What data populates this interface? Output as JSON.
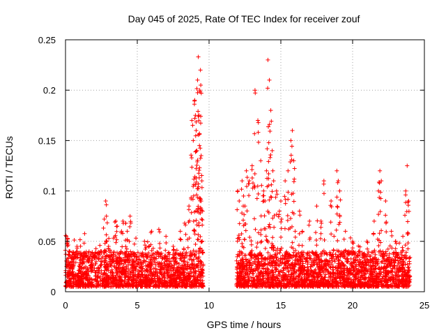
{
  "chart_data": {
    "type": "scatter",
    "title": "Day 045 of 2025, Rate Of TEC Index for receiver zouf",
    "xlabel": "GPS time / hours",
    "ylabel": "ROTI / TECUs",
    "xlim": [
      0,
      25
    ],
    "ylim": [
      0,
      0.25
    ],
    "xticks": [
      0,
      5,
      10,
      15,
      20,
      25
    ],
    "yticks": [
      0,
      0.05,
      0.1,
      0.15,
      0.2,
      0.25
    ],
    "xtick_labels": [
      "0",
      "5",
      "10",
      "15",
      "20",
      "25"
    ],
    "ytick_labels": [
      "0",
      "0.05",
      "0.1",
      "0.15",
      "0.2",
      "0.25"
    ],
    "grid": true,
    "marker": "+",
    "color": "#ff0000",
    "series": [
      {
        "name": "ROTI",
        "x": [
          0.05,
          0.1,
          0.15,
          0.3,
          0.5,
          0.6,
          0.8,
          1.0,
          1.2,
          1.5,
          2.0,
          2.5,
          2.7,
          2.8,
          2.85,
          3.0,
          3.5,
          3.6,
          3.9,
          4.0,
          4.2,
          4.3,
          4.5,
          5.5,
          6.0,
          6.5,
          7.0,
          7.5,
          8.0,
          8.3,
          8.6,
          8.8,
          8.9,
          9.0,
          9.05,
          9.1,
          9.15,
          9.2,
          9.25,
          9.3,
          9.35,
          9.4,
          9.45,
          9.5,
          9.55,
          12.0,
          12.1,
          12.3,
          12.4,
          12.5,
          12.6,
          12.8,
          13.0,
          13.2,
          13.4,
          13.6,
          13.8,
          13.9,
          14.0,
          14.1,
          14.2,
          14.3,
          14.4,
          14.5,
          14.7,
          14.9,
          15.0,
          15.3,
          15.5,
          15.7,
          15.8,
          15.9,
          16.0,
          16.3,
          16.5,
          17.0,
          17.5,
          17.8,
          18.0,
          18.5,
          18.9,
          19.0,
          19.1,
          19.5,
          20.0,
          20.5,
          21.0,
          21.5,
          21.8,
          21.9,
          22.0,
          22.3,
          22.7,
          23.0,
          23.5,
          23.7,
          23.8,
          23.9
        ],
        "y": [
          0.055,
          0.05,
          0.053,
          0.04,
          0.032,
          0.035,
          0.045,
          0.025,
          0.028,
          0.03,
          0.035,
          0.04,
          0.072,
          0.09,
          0.075,
          0.045,
          0.07,
          0.065,
          0.06,
          0.07,
          0.068,
          0.06,
          0.075,
          0.05,
          0.06,
          0.062,
          0.055,
          0.045,
          0.06,
          0.068,
          0.085,
          0.17,
          0.15,
          0.19,
          0.175,
          0.16,
          0.14,
          0.21,
          0.233,
          0.175,
          0.2,
          0.22,
          0.135,
          0.11,
          0.08,
          0.1,
          0.09,
          0.11,
          0.095,
          0.085,
          0.12,
          0.11,
          0.125,
          0.2,
          0.17,
          0.13,
          0.1,
          0.09,
          0.12,
          0.23,
          0.21,
          0.18,
          0.14,
          0.11,
          0.1,
          0.08,
          0.09,
          0.11,
          0.12,
          0.15,
          0.16,
          0.13,
          0.06,
          0.08,
          0.06,
          0.07,
          0.085,
          0.07,
          0.11,
          0.09,
          0.12,
          0.11,
          0.1,
          0.06,
          0.05,
          0.04,
          0.05,
          0.07,
          0.1,
          0.12,
          0.11,
          0.09,
          0.06,
          0.05,
          0.055,
          0.1,
          0.125,
          0.09
        ],
        "baseline_band": [
          0.005,
          0.04
        ]
      }
    ],
    "data_gap_hours": [
      9.6,
      11.9
    ]
  }
}
